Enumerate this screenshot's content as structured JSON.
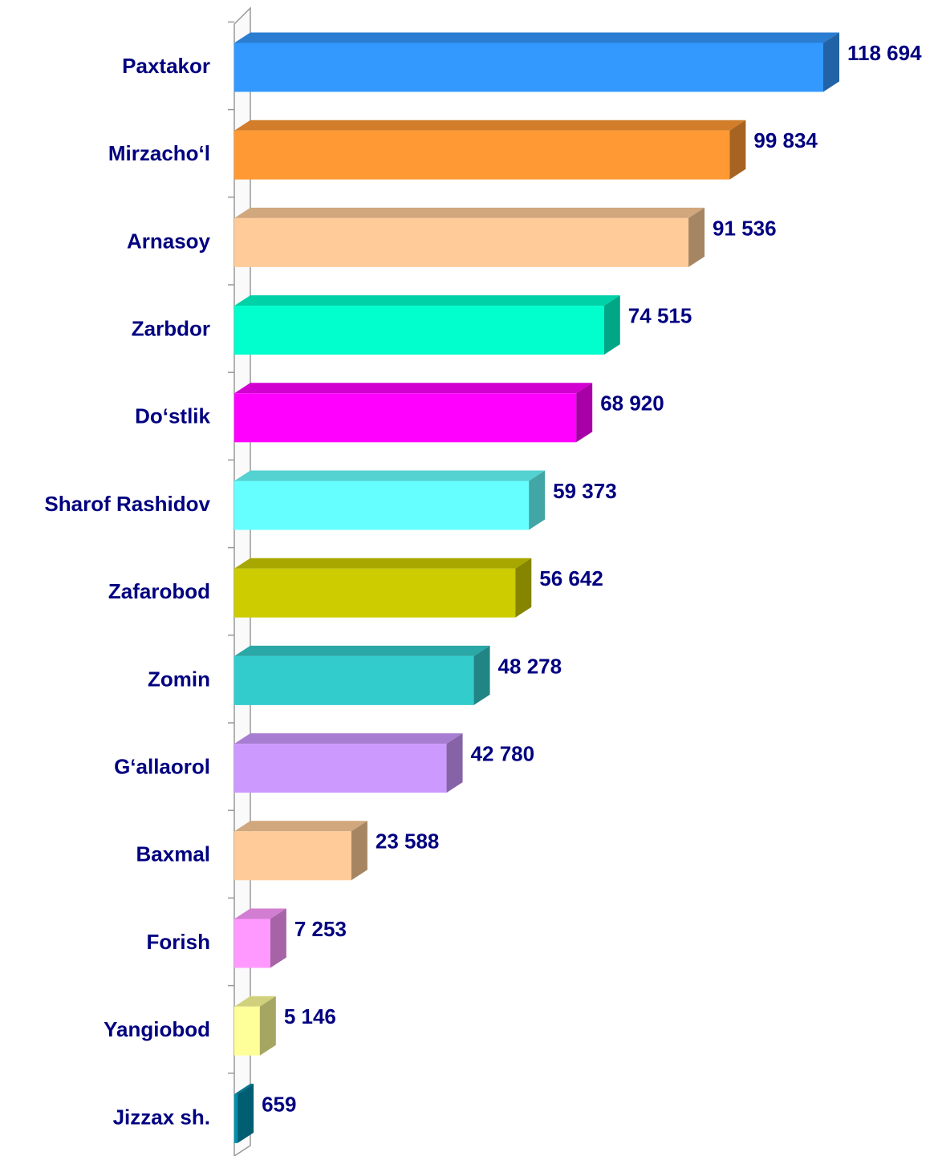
{
  "chart_data": {
    "type": "bar",
    "orientation": "horizontal",
    "categories": [
      "Paxtakor",
      "Mirzacho‘l",
      "Arnasoy",
      "Zarbdor",
      "Do‘stlik",
      "Sharof Rashidov",
      "Zafarobod",
      "Zomin",
      "G‘allaorol",
      "Baxmal",
      "Forish",
      "Yangiobod",
      "Jizzax sh."
    ],
    "values": [
      118694,
      99834,
      91536,
      74515,
      68920,
      59373,
      56642,
      48278,
      42780,
      23588,
      7253,
      5146,
      659
    ],
    "value_labels": [
      "118 694",
      "99 834",
      "91 536",
      "74 515",
      "68 920",
      "59 373",
      "56 642",
      "48 278",
      "42 780",
      "23 588",
      "7 253",
      "5 146",
      "659"
    ],
    "colors": [
      "#3399ff",
      "#ff9933",
      "#ffcc99",
      "#00ffcc",
      "#ff00ff",
      "#66ffff",
      "#cccc00",
      "#33cccc",
      "#cc99ff",
      "#ffcc99",
      "#ff99ff",
      "#ffff99",
      "#0090b0"
    ]
  }
}
